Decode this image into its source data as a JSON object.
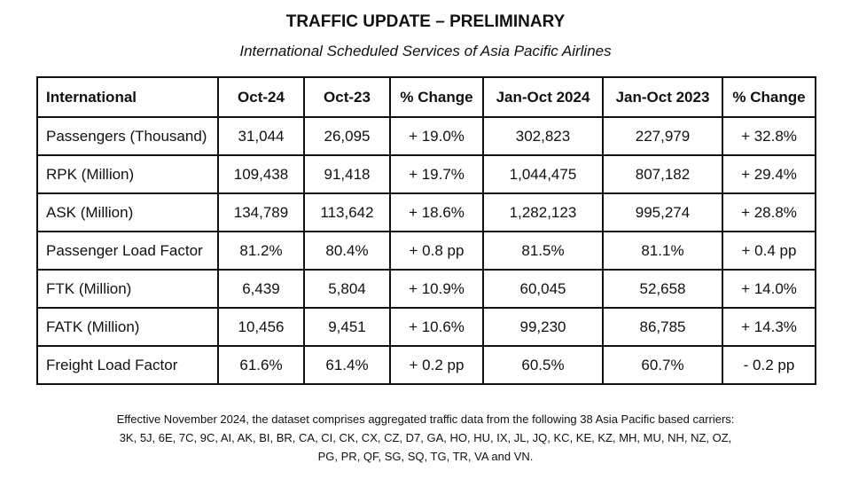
{
  "title": "TRAFFIC UPDATE – PRELIMINARY",
  "subtitle": "International Scheduled Services of Asia Pacific Airlines",
  "table": {
    "headers": [
      "International",
      "Oct-24",
      "Oct-23",
      "% Change",
      "Jan-Oct 2024",
      "Jan-Oct 2023",
      "% Change"
    ],
    "rows": [
      [
        "Passengers (Thousand)",
        "31,044",
        "26,095",
        "+ 19.0%",
        "302,823",
        "227,979",
        "+ 32.8%"
      ],
      [
        "RPK (Million)",
        "109,438",
        "91,418",
        "+ 19.7%",
        "1,044,475",
        "807,182",
        "+ 29.4%"
      ],
      [
        "ASK (Million)",
        "134,789",
        "113,642",
        "+ 18.6%",
        "1,282,123",
        "995,274",
        "+ 28.8%"
      ],
      [
        "Passenger Load Factor",
        "81.2%",
        "80.4%",
        "+ 0.8 pp",
        "81.5%",
        "81.1%",
        "+ 0.4 pp"
      ],
      [
        "FTK (Million)",
        "6,439",
        "5,804",
        "+ 10.9%",
        "60,045",
        "52,658",
        "+ 14.0%"
      ],
      [
        "FATK (Million)",
        "10,456",
        "9,451",
        "+ 10.6%",
        "99,230",
        "86,785",
        "+ 14.3%"
      ],
      [
        "Freight Load Factor",
        "61.6%",
        "61.4%",
        "+ 0.2 pp",
        "60.5%",
        "60.7%",
        "- 0.2 pp"
      ]
    ]
  },
  "footnote": {
    "line1": "Effective November 2024, the dataset comprises aggregated traffic data from the following 38 Asia Pacific based carriers:",
    "line2": "3K, 5J, 6E, 7C, 9C, AI, AK, BI, BR, CA, CI, CK, CX, CZ, D7, GA, HO, HU, IX, JL, JQ, KC, KE, KZ, MH, MU, NH, NZ, OZ,",
    "line3": "PG, PR, QF, SG, SQ, TG, TR, VA and VN."
  }
}
